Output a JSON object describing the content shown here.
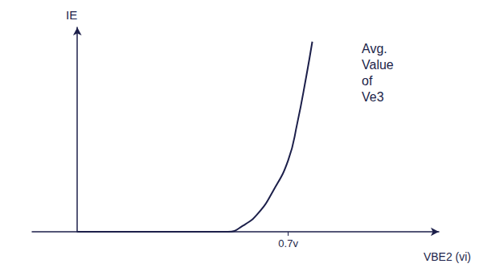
{
  "chart_data": {
    "type": "line",
    "x_label": "VBE2 (vi)",
    "y_label": "IE",
    "annotations": [
      "Avg. Value of Ve3"
    ],
    "x": [
      0,
      0.5,
      0.55,
      0.6,
      0.65,
      0.7,
      0.73,
      0.76,
      0.78
    ],
    "values": [
      0,
      0,
      0.3,
      0.9,
      2.0,
      3.5,
      5.3,
      7.6,
      9.3
    ],
    "color": "#1c1f4a",
    "xlim": [
      -0.15,
      1.2
    ],
    "xticks": [
      {
        "value": 0.7,
        "label": "0.7v"
      }
    ],
    "ylim": [
      0,
      10
    ],
    "yticks": [],
    "tick_labels": "x",
    "grid": false
  }
}
